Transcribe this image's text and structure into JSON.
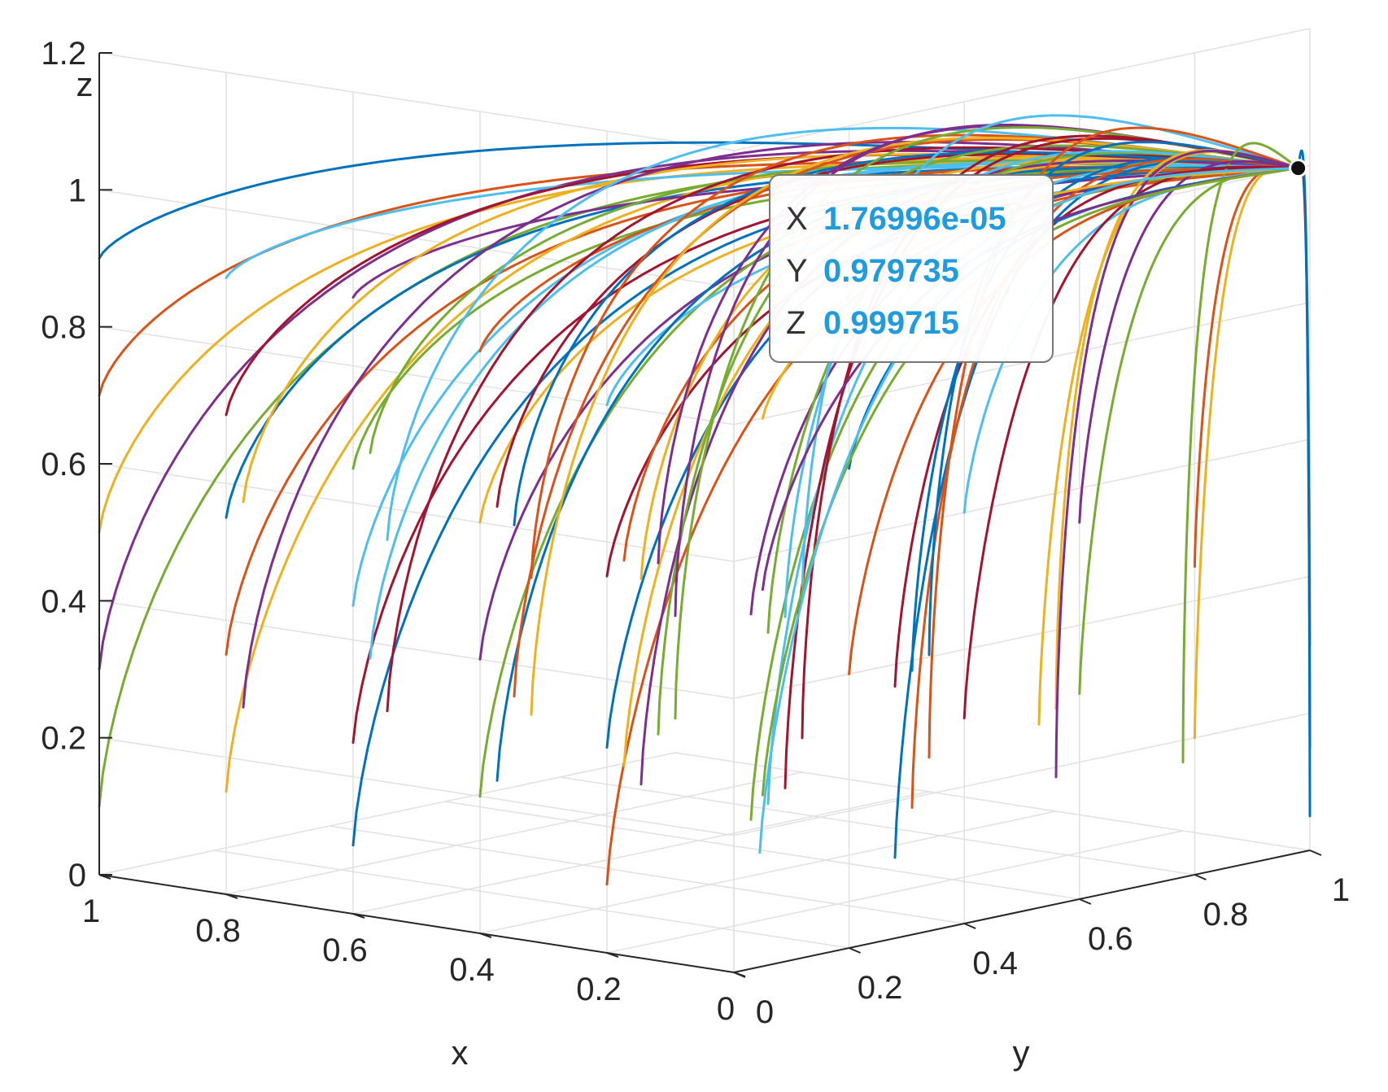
{
  "chart_data": {
    "type": "line3d",
    "xlabel": "x",
    "ylabel": "y",
    "zlabel": "z",
    "xlim": [
      0,
      1
    ],
    "ylim": [
      0,
      1
    ],
    "zlim": [
      0,
      1.2
    ],
    "grid": true,
    "x_ticks": [
      {
        "value": 0,
        "label": "0"
      },
      {
        "value": 0.2,
        "label": "0.2"
      },
      {
        "value": 0.4,
        "label": "0.4"
      },
      {
        "value": 0.6,
        "label": "0.6"
      },
      {
        "value": 0.8,
        "label": "0.8"
      },
      {
        "value": 1,
        "label": "1"
      }
    ],
    "y_ticks": [
      {
        "value": 0,
        "label": "0"
      },
      {
        "value": 0.2,
        "label": "0.2"
      },
      {
        "value": 0.4,
        "label": "0.4"
      },
      {
        "value": 0.6,
        "label": "0.6"
      },
      {
        "value": 0.8,
        "label": "0.8"
      },
      {
        "value": 1,
        "label": "1"
      }
    ],
    "z_ticks": [
      {
        "value": 0,
        "label": "0"
      },
      {
        "value": 0.2,
        "label": "0.2"
      },
      {
        "value": 0.4,
        "label": "0.4"
      },
      {
        "value": 0.6,
        "label": "0.6"
      },
      {
        "value": 0.8,
        "label": "0.8"
      },
      {
        "value": 1,
        "label": "1"
      },
      {
        "value": 1.2,
        "label": "1.2"
      }
    ],
    "series_colors": [
      "#0072bd",
      "#d95319",
      "#edb120",
      "#7e2f8e",
      "#77ac30",
      "#4dbeee",
      "#a2142f"
    ],
    "trajectory_start_points": [
      [
        1.0,
        0.0,
        0.9
      ],
      [
        1.0,
        0.0,
        0.7
      ],
      [
        1.0,
        0.0,
        0.5
      ],
      [
        1.0,
        0.0,
        0.3
      ],
      [
        1.0,
        0.0,
        0.1
      ],
      [
        0.8,
        0.0,
        0.9
      ],
      [
        0.8,
        0.0,
        0.7
      ],
      [
        0.8,
        0.0,
        0.55
      ],
      [
        0.8,
        0.0,
        0.35
      ],
      [
        0.8,
        0.0,
        0.15
      ],
      [
        0.6,
        0.0,
        0.9
      ],
      [
        0.6,
        0.0,
        0.65
      ],
      [
        0.6,
        0.0,
        0.45
      ],
      [
        0.6,
        0.0,
        0.25
      ],
      [
        0.6,
        0.0,
        0.1
      ],
      [
        0.4,
        0.0,
        0.85
      ],
      [
        0.4,
        0.0,
        0.6
      ],
      [
        0.4,
        0.0,
        0.4
      ],
      [
        0.4,
        0.0,
        0.2
      ],
      [
        0.2,
        0.0,
        0.8
      ],
      [
        0.2,
        0.0,
        0.55
      ],
      [
        0.2,
        0.0,
        0.3
      ],
      [
        0.2,
        0.0,
        0.1
      ],
      [
        1.0,
        0.25,
        0.5
      ],
      [
        1.0,
        0.25,
        0.2
      ],
      [
        0.8,
        0.25,
        0.6
      ],
      [
        0.8,
        0.25,
        0.3
      ],
      [
        0.6,
        0.25,
        0.55
      ],
      [
        0.6,
        0.25,
        0.15
      ],
      [
        0.4,
        0.25,
        0.5
      ],
      [
        0.4,
        0.25,
        0.2
      ],
      [
        0.2,
        0.25,
        0.45
      ],
      [
        0.2,
        0.25,
        0.15
      ],
      [
        1.0,
        0.5,
        0.4
      ],
      [
        1.0,
        0.5,
        0.15
      ],
      [
        0.8,
        0.5,
        0.45
      ],
      [
        0.8,
        0.5,
        0.2
      ],
      [
        0.6,
        0.5,
        0.4
      ],
      [
        0.6,
        0.5,
        0.1
      ],
      [
        0.4,
        0.5,
        0.35
      ],
      [
        0.4,
        0.5,
        0.1
      ],
      [
        0.2,
        0.5,
        0.3
      ],
      [
        0.2,
        0.5,
        0.05
      ],
      [
        1.0,
        0.75,
        0.3
      ],
      [
        1.0,
        0.75,
        0.1
      ],
      [
        0.8,
        0.75,
        0.35
      ],
      [
        0.8,
        0.75,
        0.1
      ],
      [
        0.6,
        0.75,
        0.3
      ],
      [
        0.6,
        0.75,
        0.05
      ],
      [
        0.4,
        0.75,
        0.25
      ],
      [
        0.4,
        0.75,
        0.05
      ],
      [
        0.2,
        0.75,
        0.2
      ],
      [
        1.0,
        1.0,
        0.2
      ],
      [
        1.0,
        1.0,
        0.05
      ],
      [
        0.8,
        1.0,
        0.25
      ],
      [
        0.8,
        1.0,
        0.05
      ],
      [
        0.6,
        1.0,
        0.2
      ],
      [
        0.6,
        1.0,
        0.05
      ],
      [
        0.4,
        1.0,
        0.15
      ],
      [
        0.4,
        1.0,
        0.05
      ],
      [
        0.2,
        1.0,
        0.1
      ],
      [
        0.0,
        1.0,
        0.3
      ],
      [
        0.0,
        1.0,
        0.15
      ],
      [
        0.0,
        1.0,
        0.05
      ],
      [
        0.0,
        0.8,
        0.45
      ],
      [
        0.0,
        0.8,
        0.2
      ],
      [
        0.0,
        0.6,
        0.55
      ],
      [
        0.0,
        0.6,
        0.3
      ],
      [
        0.0,
        0.4,
        0.6
      ],
      [
        0.0,
        0.4,
        0.3
      ],
      [
        0.0,
        0.2,
        0.7
      ],
      [
        0.0,
        0.2,
        0.4
      ],
      [
        0.0,
        0.05,
        0.8
      ],
      [
        0.0,
        0.05,
        0.55
      ],
      [
        0.0,
        0.05,
        0.25
      ],
      [
        0.05,
        0.1,
        0.15
      ]
    ],
    "convergence_point": {
      "x": 1.76996e-05,
      "y": 0.979735,
      "z": 0.999715
    },
    "datatip": [
      {
        "key": "X",
        "value": "1.76996e-05"
      },
      {
        "key": "Y",
        "value": "0.979735"
      },
      {
        "key": "Z",
        "value": "0.999715"
      }
    ]
  }
}
